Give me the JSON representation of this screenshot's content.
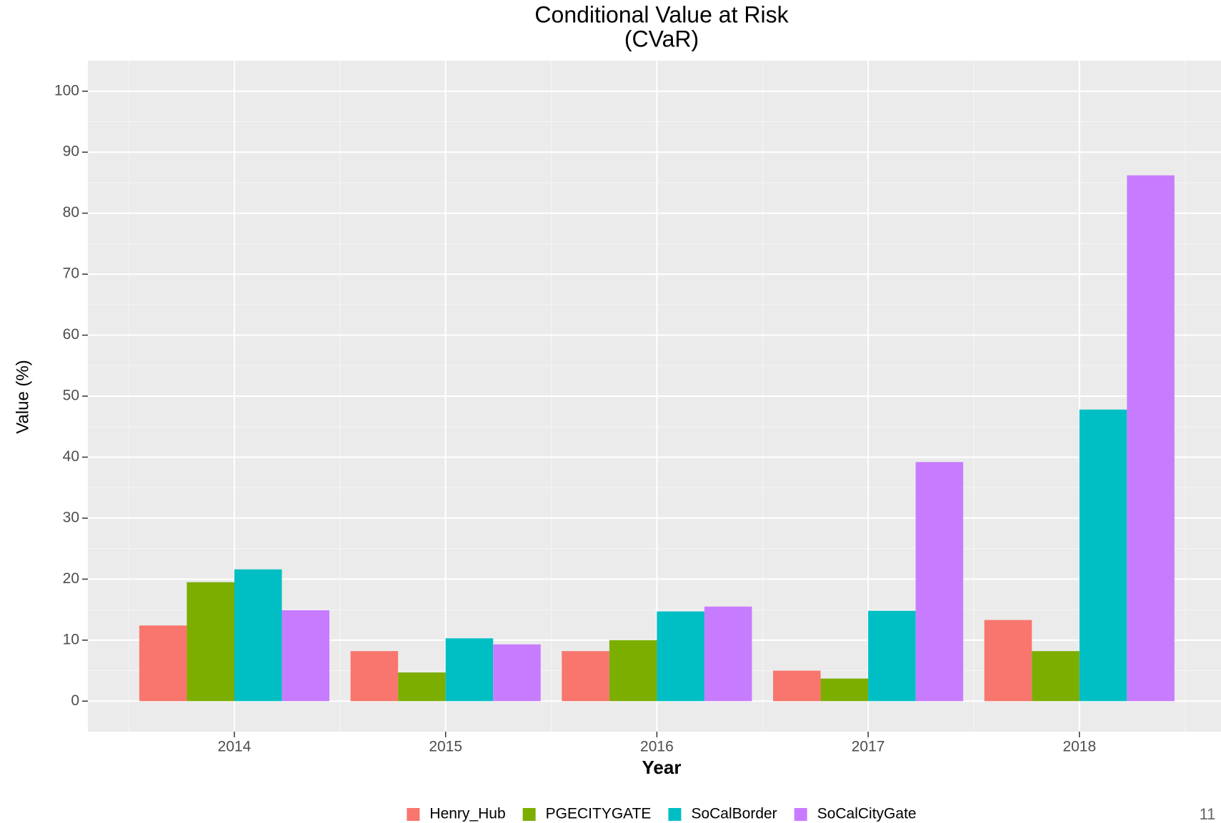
{
  "chart_data": {
    "type": "bar",
    "title": "Conditional Value at Risk",
    "subtitle": "(CVaR)",
    "x_label": "Year",
    "y_label": "Value (%)",
    "categories": [
      "2014",
      "2015",
      "2016",
      "2017",
      "2018"
    ],
    "series": [
      {
        "name": "Henry_Hub",
        "color": "#f8766d",
        "values": [
          12.4,
          8.2,
          8.2,
          5.0,
          13.3
        ]
      },
      {
        "name": "PGECITYGATE",
        "color": "#7cae00",
        "values": [
          19.5,
          4.7,
          10.0,
          3.7,
          8.2
        ]
      },
      {
        "name": "SoCalBorder",
        "color": "#00bfc4",
        "values": [
          21.6,
          10.3,
          14.7,
          14.8,
          47.8
        ]
      },
      {
        "name": "SoCalCityGate",
        "color": "#c77cff",
        "values": [
          14.9,
          9.3,
          15.5,
          39.2,
          86.2
        ]
      }
    ],
    "ylim": [
      -5,
      105
    ],
    "yticks": [
      0,
      10,
      20,
      30,
      40,
      50,
      60,
      70,
      80,
      90,
      100
    ],
    "grid": true,
    "legend": "bottom",
    "page_number": "11"
  }
}
